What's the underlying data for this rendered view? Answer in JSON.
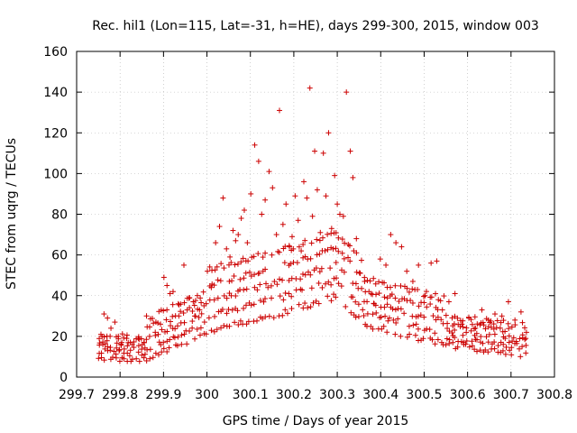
{
  "chart_data": {
    "type": "scatter",
    "title": "Rec. hil1 (Lon=115, Lat=-31, h=HE), days 299-300, 2015, window 003",
    "xlabel": "GPS time / Days of year 2015",
    "ylabel": "STEC from uqrg / TECUs",
    "xlim": [
      299.7,
      300.8
    ],
    "ylim": [
      0,
      160
    ],
    "xticks": [
      299.7,
      299.8,
      299.9,
      300,
      300.1,
      300.2,
      300.3,
      300.4,
      300.5,
      300.6,
      300.7,
      300.8
    ],
    "xtick_labels": [
      "299.7",
      "299.8",
      "299.9",
      "300",
      "300.1",
      "300.2",
      "300.3",
      "300.4",
      "300.5",
      "300.6",
      "300.7",
      "300.8"
    ],
    "yticks": [
      0,
      20,
      40,
      60,
      80,
      100,
      120,
      140,
      160
    ],
    "ytick_labels": [
      "0",
      "20",
      "40",
      "60",
      "80",
      "100",
      "120",
      "140",
      "160"
    ],
    "grid": true,
    "marker": "+",
    "color": "#cc0000",
    "series": [
      {
        "name": "STEC",
        "points": [
          [
            299.756,
            21
          ],
          [
            299.763,
            31
          ],
          [
            299.771,
            29
          ],
          [
            299.779,
            24
          ],
          [
            299.788,
            27
          ],
          [
            299.796,
            20
          ],
          [
            299.804,
            17
          ],
          [
            299.815,
            19
          ],
          [
            299.828,
            16
          ],
          [
            299.842,
            19
          ],
          [
            299.855,
            17
          ],
          [
            299.868,
            20
          ],
          [
            299.881,
            22
          ],
          [
            299.893,
            26
          ],
          [
            299.901,
            49
          ],
          [
            299.908,
            45
          ],
          [
            299.915,
            41
          ],
          [
            299.922,
            42
          ],
          [
            299.934,
            36
          ],
          [
            299.947,
            55
          ],
          [
            299.96,
            39
          ],
          [
            299.972,
            30
          ],
          [
            299.983,
            33
          ],
          [
            300.001,
            52
          ],
          [
            300.01,
            44
          ],
          [
            300.02,
            66
          ],
          [
            300.029,
            74
          ],
          [
            300.037,
            88
          ],
          [
            300.045,
            63
          ],
          [
            300.053,
            59
          ],
          [
            300.06,
            72
          ],
          [
            300.066,
            67
          ],
          [
            300.072,
            70
          ],
          [
            300.079,
            78
          ],
          [
            300.086,
            82
          ],
          [
            300.093,
            66
          ],
          [
            300.101,
            90
          ],
          [
            300.11,
            114
          ],
          [
            300.119,
            106
          ],
          [
            300.126,
            80
          ],
          [
            300.134,
            87
          ],
          [
            300.143,
            101
          ],
          [
            300.151,
            93
          ],
          [
            300.16,
            70
          ],
          [
            300.167,
            131
          ],
          [
            300.175,
            75
          ],
          [
            300.182,
            85
          ],
          [
            300.19,
            64
          ],
          [
            300.196,
            69
          ],
          [
            300.203,
            89
          ],
          [
            300.21,
            77
          ],
          [
            300.217,
            62
          ],
          [
            300.223,
            96
          ],
          [
            300.23,
            88
          ],
          [
            300.237,
            142
          ],
          [
            300.243,
            79
          ],
          [
            300.248,
            111
          ],
          [
            300.254,
            92
          ],
          [
            300.261,
            71
          ],
          [
            300.268,
            110
          ],
          [
            300.274,
            89
          ],
          [
            300.28,
            120
          ],
          [
            300.287,
            73
          ],
          [
            300.294,
            99
          ],
          [
            300.3,
            85
          ],
          [
            300.306,
            80
          ],
          [
            300.314,
            79
          ],
          [
            300.321,
            140
          ],
          [
            300.33,
            111
          ],
          [
            300.336,
            98
          ],
          [
            300.344,
            68
          ],
          [
            300.353,
            51
          ],
          [
            300.363,
            47
          ],
          [
            300.373,
            42
          ],
          [
            300.385,
            36
          ],
          [
            300.399,
            58
          ],
          [
            300.412,
            55
          ],
          [
            300.423,
            70
          ],
          [
            300.435,
            66
          ],
          [
            300.448,
            64
          ],
          [
            300.46,
            52
          ],
          [
            300.474,
            47
          ],
          [
            300.487,
            55
          ],
          [
            300.502,
            40
          ],
          [
            300.516,
            56
          ],
          [
            300.529,
            57
          ],
          [
            300.542,
            33
          ],
          [
            300.557,
            37
          ],
          [
            300.571,
            41
          ],
          [
            300.587,
            26
          ],
          [
            300.603,
            29
          ],
          [
            300.618,
            24
          ],
          [
            300.633,
            33
          ],
          [
            300.648,
            28
          ],
          [
            300.663,
            31
          ],
          [
            300.679,
            30
          ],
          [
            300.694,
            37
          ],
          [
            300.709,
            28
          ],
          [
            300.723,
            32
          ],
          [
            300.734,
            19
          ]
        ]
      }
    ]
  }
}
